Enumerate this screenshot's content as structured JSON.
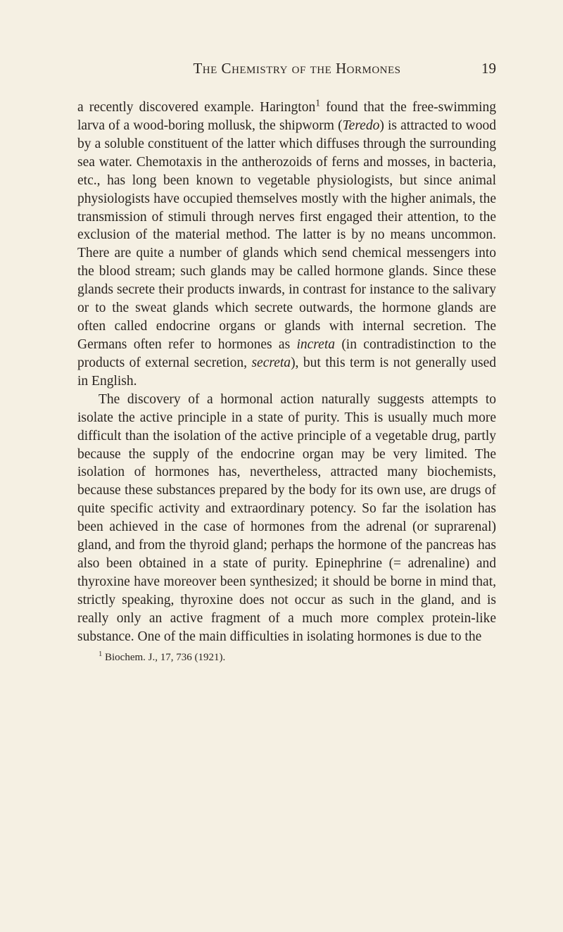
{
  "header": {
    "title": "The Chemistry of the Hormones",
    "page_number": "19"
  },
  "paragraphs": {
    "p1_part1": "a recently discovered example. Harington",
    "p1_sup1": "1",
    "p1_part2": " found that the free-swimming larva of a wood-boring mollusk, the shipworm (",
    "p1_italic1": "Teredo",
    "p1_part3": ") is attracted to wood by a soluble constituent of the latter which diffuses through the sur­rounding sea water. Chemotaxis in the antherozoids of ferns and mosses, in bacteria, etc., has long been known to vegetable physiologists, but since animal physiologists have occupied themselves mostly with the higher animals, the transmission of stimuli through nerves first engaged their attention, to the exclusion of the material method. The latter is by no means uncommon. There are quite a number of glands which send chemical messengers into the blood stream; such glands may be called hormone glands. Since these glands secrete their products in­wards, in contrast for instance to the salivary or to the sweat glands which secrete outwards, the hormone glands are often called endocrine organs or glands with internal secretion. The Germans often refer to hormones as ",
    "p1_italic2": "increta",
    "p1_part4": " (in contradistinction to the products of external secre­tion, ",
    "p1_italic3": "secreta",
    "p1_part5": "), but this term is not generally used in English.",
    "p2": "The discovery of a hormonal action naturally suggests attempts to isolate the active principle in a state of purity. This is usually much more difficult than the isolation of the active principle of a vegetable drug, partly because the supply of the endocrine organ may be very limited. The isolation of hormones has, nevertheless, attracted many biochemists, because these substances prepared by the body for its own use, are drugs of quite specific activity and extraordinary potency. So far the isolation has been achieved in the case of hormones from the adrenal (or suprarenal) gland, and from the thyroid gland; perhaps the hormone of the pancreas has also been obtained in a state of purity. Epinephrine (= adrenaline) and thyroxine have moreover been synthesized; it should be borne in mind that, strictly speaking, thyroxine does not occur as such in the gland, and is really only an active fragment of a much more complex protein-like substance. One of the main difficulties in isolating hormones is due to the"
  },
  "footnote": {
    "sup": "1",
    "text_part1": " Biochem. J., ",
    "text_bold": "17",
    "text_part2": ", 736 (1921)."
  },
  "styles": {
    "background_color": "#f5f0e3",
    "text_color": "#2a2420",
    "font_family": "Georgia, 'Times New Roman', serif",
    "body_fontsize": 19.5,
    "header_fontsize": 21,
    "footnote_fontsize": 15,
    "line_height": 1.33
  }
}
